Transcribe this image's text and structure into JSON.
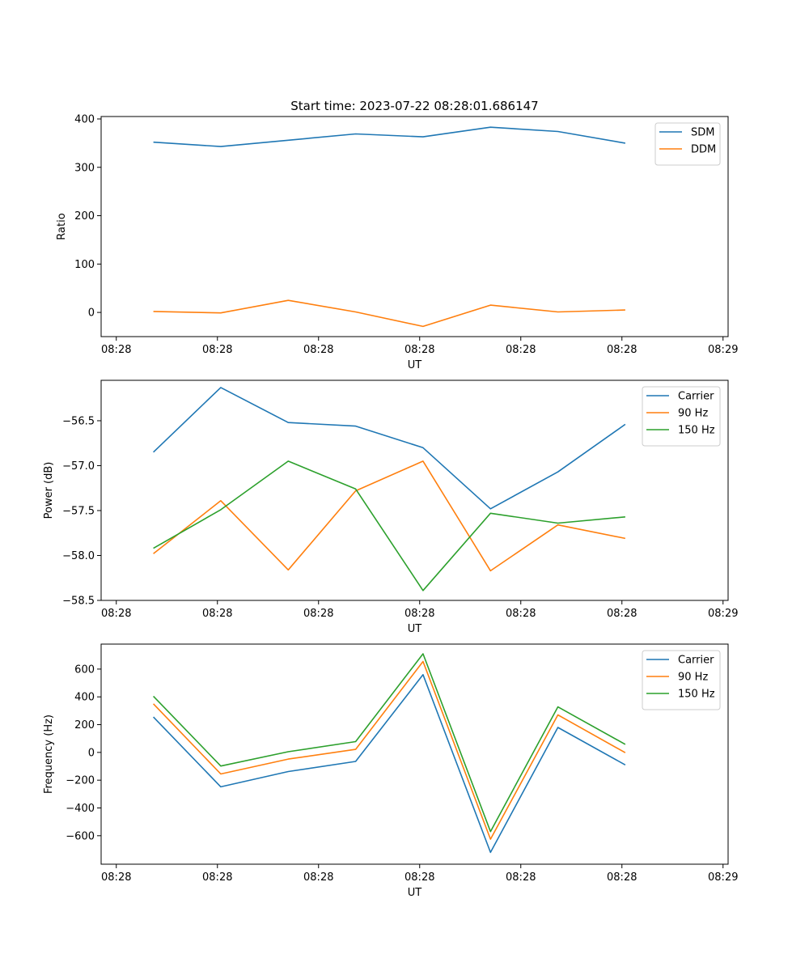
{
  "figure_title": "Start time: 2023-07-22 08:28:01.686147",
  "colors": {
    "blue": "#1f77b4",
    "orange": "#ff7f0e",
    "green": "#2ca02c"
  },
  "chart_data": [
    {
      "type": "line",
      "title": "Start time: 2023-07-22 08:28:01.686147",
      "xlabel": "UT",
      "ylabel": "Ratio",
      "x": [
        1,
        2,
        3,
        4,
        5,
        6,
        7,
        8
      ],
      "xlim": [
        0.225,
        9.525
      ],
      "xticks": [
        0.45,
        1.95,
        3.45,
        4.95,
        6.45,
        7.95,
        9.45
      ],
      "xtick_labels": [
        "08:28",
        "08:28",
        "08:28",
        "08:28",
        "08:28",
        "08:28",
        "08:29"
      ],
      "ylim": [
        -50,
        405
      ],
      "yticks": [
        0,
        100,
        200,
        300,
        400
      ],
      "ytick_labels": [
        "0",
        "100",
        "200",
        "300",
        "400"
      ],
      "legend": "top-right",
      "series": [
        {
          "name": "SDM",
          "color": "#1f77b4",
          "values": [
            352,
            343,
            356,
            369,
            363,
            383,
            374,
            350
          ]
        },
        {
          "name": "DDM",
          "color": "#ff7f0e",
          "values": [
            2,
            -1,
            25,
            1,
            -29,
            15,
            1,
            5
          ]
        }
      ]
    },
    {
      "type": "line",
      "title": "",
      "xlabel": "UT",
      "ylabel": "Power (dB)",
      "x": [
        1,
        2,
        3,
        4,
        5,
        6,
        7,
        8
      ],
      "xlim": [
        0.225,
        9.525
      ],
      "xticks": [
        0.45,
        1.95,
        3.45,
        4.95,
        6.45,
        7.95,
        9.45
      ],
      "xtick_labels": [
        "08:28",
        "08:28",
        "08:28",
        "08:28",
        "08:28",
        "08:28",
        "08:29"
      ],
      "ylim": [
        -58.5,
        -56.05
      ],
      "yticks": [
        -58.5,
        -58.0,
        -57.5,
        -57.0,
        -56.5
      ],
      "ytick_labels": [
        "−58.5",
        "−58.0",
        "−57.5",
        "−57.0",
        "−56.5"
      ],
      "legend": "top-right",
      "series": [
        {
          "name": "Carrier",
          "color": "#1f77b4",
          "values": [
            -56.85,
            -56.13,
            -56.52,
            -56.56,
            -56.8,
            -57.48,
            -57.07,
            -56.54
          ]
        },
        {
          "name": "90 Hz",
          "color": "#ff7f0e",
          "values": [
            -57.98,
            -57.39,
            -58.16,
            -57.28,
            -56.95,
            -58.17,
            -57.66,
            -57.81
          ]
        },
        {
          "name": "150 Hz",
          "color": "#2ca02c",
          "values": [
            -57.92,
            -57.49,
            -56.95,
            -57.26,
            -58.39,
            -57.53,
            -57.64,
            -57.57
          ]
        }
      ]
    },
    {
      "type": "line",
      "title": "",
      "xlabel": "UT",
      "ylabel": "Frequency (Hz)",
      "x": [
        1,
        2,
        3,
        4,
        5,
        6,
        7,
        8
      ],
      "xlim": [
        0.225,
        9.525
      ],
      "xticks": [
        0.45,
        1.95,
        3.45,
        4.95,
        6.45,
        7.95,
        9.45
      ],
      "xtick_labels": [
        "08:28",
        "08:28",
        "08:28",
        "08:28",
        "08:28",
        "08:28",
        "08:29"
      ],
      "ylim": [
        -805,
        780
      ],
      "yticks": [
        -600,
        -400,
        -200,
        0,
        200,
        400,
        600
      ],
      "ytick_labels": [
        "−600",
        "−400",
        "−200",
        "0",
        "200",
        "400",
        "600"
      ],
      "legend": "top-right",
      "series": [
        {
          "name": "Carrier",
          "color": "#1f77b4",
          "values": [
            255,
            -248,
            -138,
            -65,
            560,
            -720,
            180,
            -90
          ]
        },
        {
          "name": "90 Hz",
          "color": "#ff7f0e",
          "values": [
            350,
            -155,
            -48,
            22,
            655,
            -625,
            270,
            -2
          ]
        },
        {
          "name": "150 Hz",
          "color": "#2ca02c",
          "values": [
            405,
            -98,
            5,
            78,
            710,
            -570,
            328,
            58
          ]
        }
      ]
    }
  ]
}
